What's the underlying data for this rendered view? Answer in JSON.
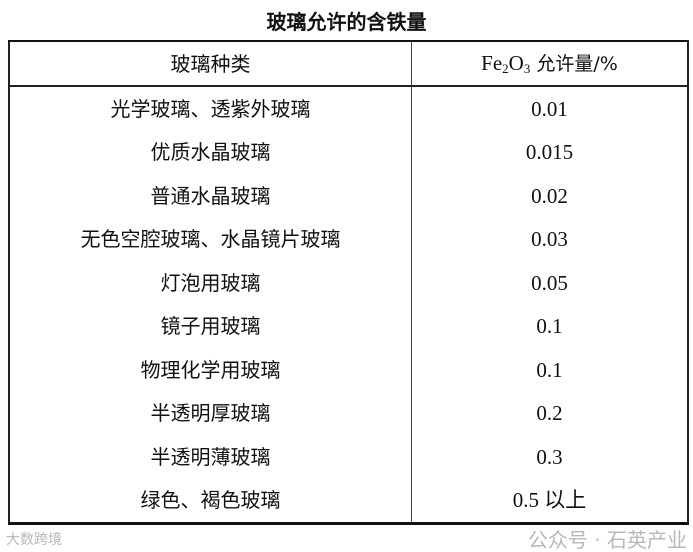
{
  "title": "玻璃允许的含铁量",
  "table": {
    "headers": {
      "type": "玻璃种类",
      "formula_main": "Fe",
      "formula_sub1": "2",
      "formula_o": "O",
      "formula_sub2": "3",
      "unit": " 允许量/%"
    },
    "rows": [
      {
        "type": "光学玻璃、透紫外玻璃",
        "value": "0.01"
      },
      {
        "type": "优质水晶玻璃",
        "value": "0.015"
      },
      {
        "type": "普通水晶玻璃",
        "value": "0.02"
      },
      {
        "type": "无色空腔玻璃、水晶镜片玻璃",
        "value": "0.03"
      },
      {
        "type": "灯泡用玻璃",
        "value": "0.05"
      },
      {
        "type": "镜子用玻璃",
        "value": "0.1"
      },
      {
        "type": "物理化学用玻璃",
        "value": "0.1"
      },
      {
        "type": "半透明厚玻璃",
        "value": "0.2"
      },
      {
        "type": "半透明薄玻璃",
        "value": "0.3"
      },
      {
        "type": "绿色、褐色玻璃",
        "value": "0.5 以上"
      }
    ]
  },
  "watermarks": {
    "left": "大数跨境",
    "right": "公众号 · 石英产业"
  }
}
